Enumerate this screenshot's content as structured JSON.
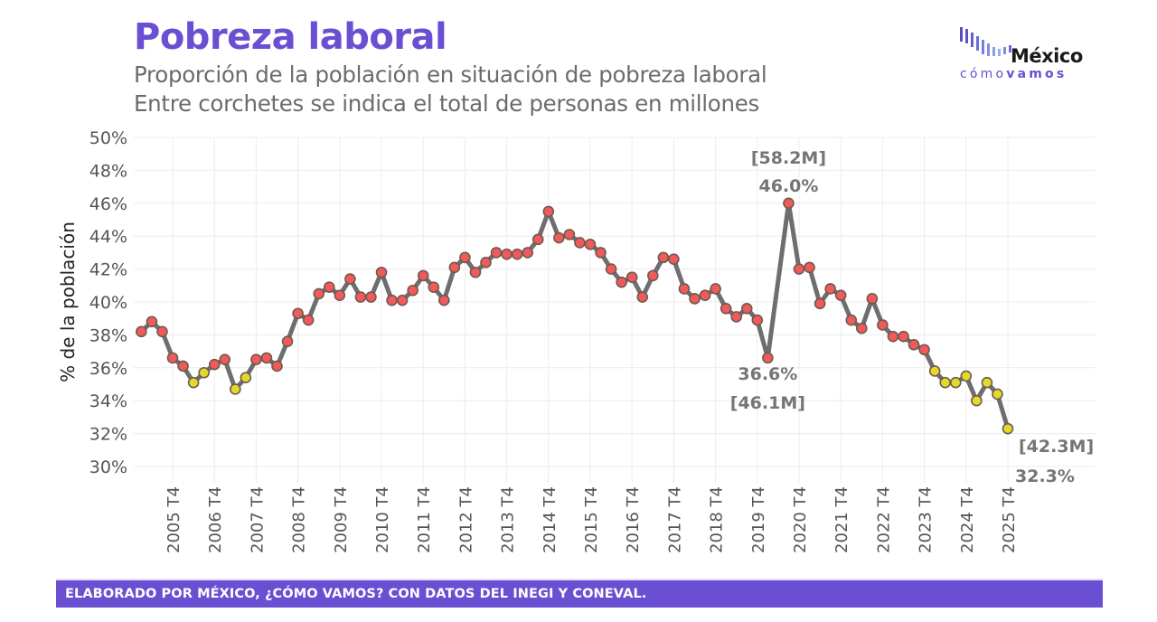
{
  "header": {
    "title": "Pobreza laboral",
    "subtitle_line1": "Proporción de la población en situación de pobreza laboral",
    "subtitle_line2": "Entre corchetes se indica el total de personas en millones"
  },
  "logo": {
    "name": "México",
    "tagline_light": "cómo",
    "tagline_bold": "vamos"
  },
  "footer": {
    "text": "ELABORADO POR MÉXICO, ¿CÓMO VAMOS? CON DATOS DEL INEGI Y CONEVAL."
  },
  "colors": {
    "brand": "#6a4fd3",
    "line": "#6e6e6e",
    "point_default": "#f05a5a",
    "point_highlight": "#e3d92a",
    "annotation": "#757575"
  },
  "chart_data": {
    "type": "line",
    "title": "Pobreza laboral",
    "xlabel": "",
    "ylabel": "% de la población",
    "ylim": [
      30,
      50
    ],
    "yticks": [
      "30%",
      "32%",
      "34%",
      "36%",
      "38%",
      "40%",
      "42%",
      "44%",
      "46%",
      "48%",
      "50%"
    ],
    "ytick_values": [
      30,
      32,
      34,
      36,
      38,
      40,
      42,
      44,
      46,
      48,
      50
    ],
    "xticks": [
      "2005 T4",
      "2006 T4",
      "2007 T4",
      "2008 T4",
      "2009 T4",
      "2010 T4",
      "2011 T4",
      "2012 T4",
      "2013 T4",
      "2014 T4",
      "2015 T4",
      "2016 T4",
      "2017 T4",
      "2018 T4",
      "2019 T4",
      "2020 T4",
      "2021 T4",
      "2022 T4",
      "2023 T4",
      "2024 T4",
      "2025 T4"
    ],
    "grid": true,
    "x_start": "2005 T1",
    "x_end": "2025 T4",
    "missing_quarters": [
      "2020 T2"
    ],
    "series": [
      {
        "name": "Pobreza laboral (%)",
        "values": [
          38.2,
          38.8,
          38.2,
          36.6,
          36.1,
          35.1,
          35.7,
          36.2,
          36.5,
          34.7,
          35.4,
          36.5,
          36.6,
          36.1,
          37.6,
          39.3,
          38.9,
          40.5,
          40.9,
          40.4,
          41.4,
          40.3,
          40.3,
          41.8,
          40.1,
          40.1,
          40.7,
          41.6,
          40.9,
          40.1,
          42.1,
          42.7,
          41.8,
          42.4,
          43.0,
          42.9,
          42.9,
          43.0,
          43.8,
          45.5,
          43.9,
          44.1,
          43.6,
          43.5,
          43.0,
          42.0,
          41.2,
          41.5,
          40.3,
          41.6,
          42.7,
          42.6,
          40.8,
          40.2,
          40.4,
          40.8,
          39.6,
          39.1,
          39.6,
          38.9,
          36.6,
          46.0,
          42.0,
          42.1,
          39.9,
          40.8,
          40.4,
          38.9,
          38.4,
          40.2,
          38.6,
          37.9,
          37.9,
          37.4,
          37.1,
          35.8,
          35.1,
          35.1,
          35.5,
          34.0,
          35.1,
          34.4,
          32.3
        ],
        "highlighted": [
          false,
          false,
          false,
          false,
          false,
          true,
          true,
          false,
          false,
          true,
          true,
          false,
          false,
          false,
          false,
          false,
          false,
          false,
          false,
          false,
          false,
          false,
          false,
          false,
          false,
          false,
          false,
          false,
          false,
          false,
          false,
          false,
          false,
          false,
          false,
          false,
          false,
          false,
          false,
          false,
          false,
          false,
          false,
          false,
          false,
          false,
          false,
          false,
          false,
          false,
          false,
          false,
          false,
          false,
          false,
          false,
          false,
          false,
          false,
          false,
          false,
          false,
          false,
          false,
          false,
          false,
          false,
          false,
          false,
          false,
          false,
          false,
          false,
          false,
          false,
          true,
          true,
          true,
          true,
          true,
          true,
          true,
          true
        ]
      }
    ],
    "annotations": [
      {
        "point_index": 60,
        "percent": "36.6%",
        "people": "[46.1M]",
        "position": "below"
      },
      {
        "point_index": 61,
        "percent": "46.0%",
        "people": "[58.2M]",
        "position": "above"
      },
      {
        "point_index": 82,
        "percent": "32.3%",
        "people": "[42.3M]",
        "position": "below-right"
      }
    ]
  }
}
